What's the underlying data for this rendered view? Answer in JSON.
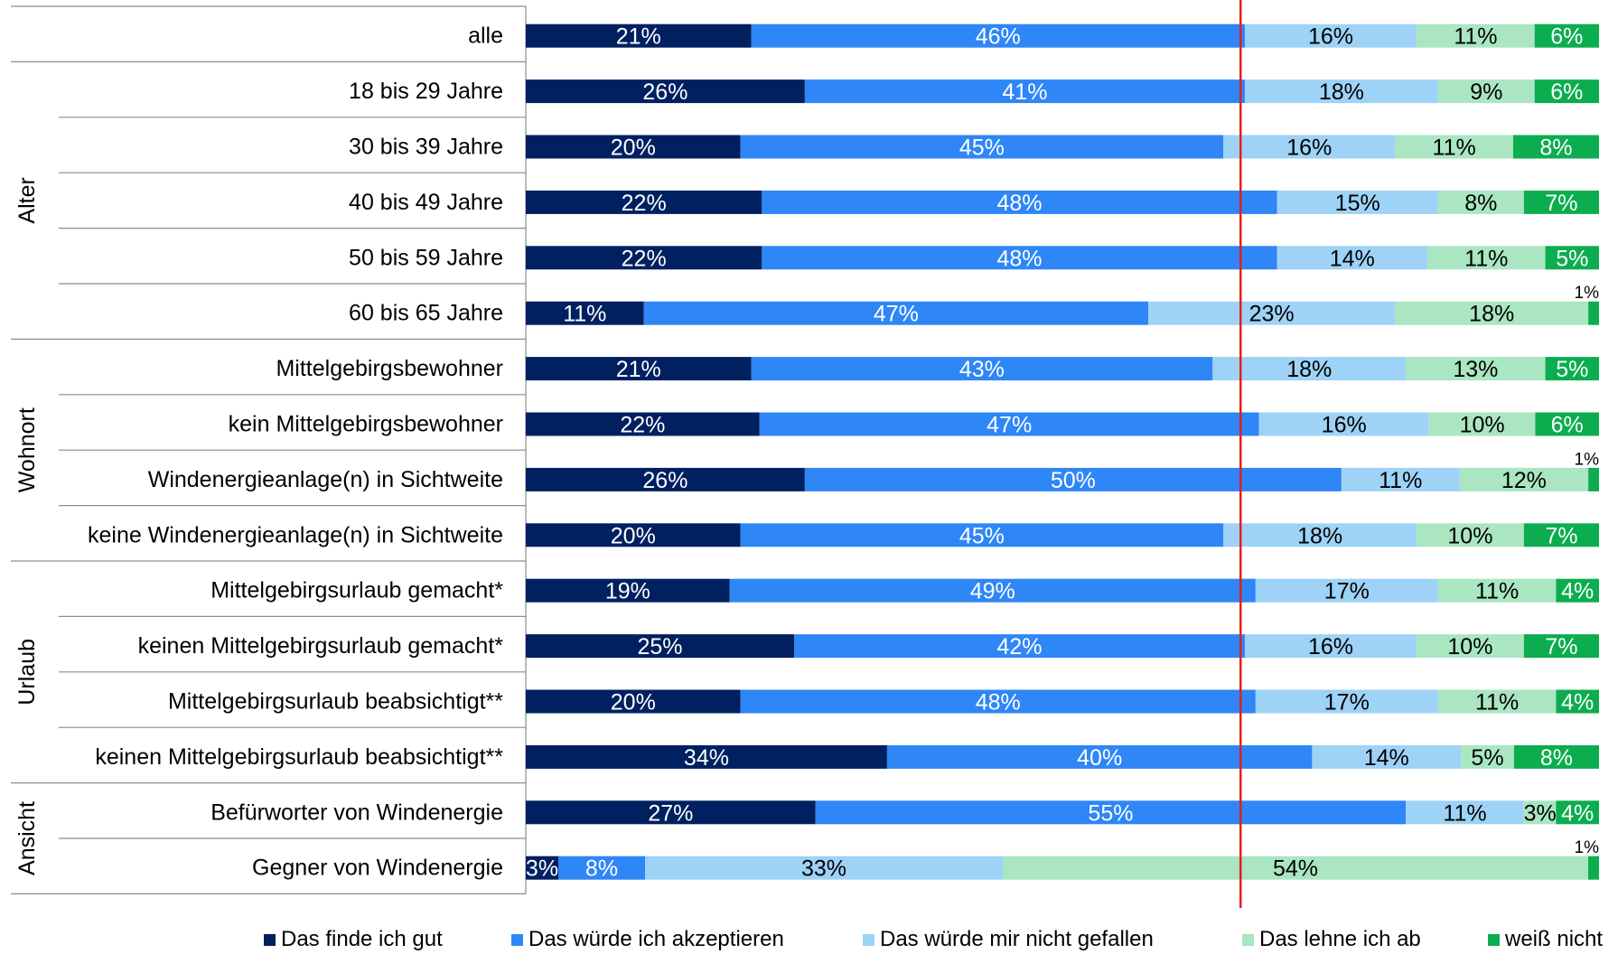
{
  "chart_data": {
    "type": "bar",
    "orientation": "horizontal",
    "stacked": true,
    "xlim": [
      0,
      100
    ],
    "grid": false,
    "legend_position": "bottom",
    "reference_line_color": "#e0201b",
    "group_labels": [
      {
        "label": "",
        "rows": [
          0,
          0
        ]
      },
      {
        "label": "Alter",
        "rows": [
          1,
          5
        ]
      },
      {
        "label": "Wohnort",
        "rows": [
          6,
          9
        ]
      },
      {
        "label": "Urlaub",
        "rows": [
          10,
          13
        ]
      },
      {
        "label": "Ansicht",
        "rows": [
          14,
          15
        ]
      }
    ],
    "categories": [
      "alle",
      "18 bis 29 Jahre",
      "30 bis 39 Jahre",
      "40 bis 49 Jahre",
      "50 bis 59 Jahre",
      "60 bis 65 Jahre",
      "Mittelgebirgsbewohner",
      "kein Mittelgebirgsbewohner",
      "Windenergieanlage(n) in Sichtweite",
      "keine Windenergieanlage(n) in Sichtweite",
      "Mittelgebirgsurlaub gemacht*",
      "keinen Mittelgebirgsurlaub gemacht*",
      "Mittelgebirgsurlaub beabsichtigt**",
      "keinen Mittelgebirgsurlaub beabsichtigt**",
      "Befürworter von Windenergie",
      "Gegner von Windenergie"
    ],
    "series": [
      {
        "name": "Das finde ich gut",
        "color": "#002060",
        "label_color": "#ffffff",
        "values": [
          21,
          26,
          20,
          22,
          22,
          11,
          21,
          22,
          26,
          20,
          19,
          25,
          20,
          34,
          27,
          3
        ]
      },
      {
        "name": "Das würde ich akzeptieren",
        "color": "#2f86f6",
        "label_color": "#ffffff",
        "values": [
          46,
          41,
          45,
          48,
          48,
          47,
          43,
          47,
          50,
          45,
          49,
          42,
          48,
          40,
          55,
          8
        ]
      },
      {
        "name": "Das würde mir nicht gefallen",
        "color": "#9ed2f7",
        "label_color": "#000000",
        "values": [
          16,
          18,
          16,
          15,
          14,
          23,
          18,
          16,
          11,
          18,
          17,
          16,
          17,
          14,
          11,
          33
        ]
      },
      {
        "name": "Das lehne ich ab",
        "color": "#a9e6c1",
        "label_color": "#000000",
        "values": [
          11,
          9,
          11,
          8,
          11,
          18,
          13,
          10,
          12,
          10,
          11,
          10,
          11,
          5,
          3,
          54
        ]
      },
      {
        "name": "weiß nicht",
        "color": "#0cad4f",
        "label_color": "#ffffff",
        "values": [
          6,
          6,
          8,
          7,
          5,
          1,
          5,
          6,
          1,
          7,
          4,
          7,
          4,
          8,
          4,
          1
        ]
      }
    ],
    "value_labels": [
      [
        "21%",
        "46%",
        "16%",
        "11%",
        "6%"
      ],
      [
        "26%",
        "41%",
        "18%",
        "9%",
        "6%"
      ],
      [
        "20%",
        "45%",
        "16%",
        "11%",
        "8%"
      ],
      [
        "22%",
        "48%",
        "15%",
        "8%",
        "7%"
      ],
      [
        "22%",
        "48%",
        "14%",
        "11%",
        "5%"
      ],
      [
        "11%",
        "47%",
        "23%",
        "18%",
        "1%"
      ],
      [
        "21%",
        "43%",
        "18%",
        "13%",
        "5%"
      ],
      [
        "22%",
        "47%",
        "16%",
        "10%",
        "6%"
      ],
      [
        "26%",
        "50%",
        "11%",
        "12%",
        "1%"
      ],
      [
        "20%",
        "45%",
        "18%",
        "10%",
        "7%"
      ],
      [
        "19%",
        "49%",
        "17%",
        "11%",
        "4%"
      ],
      [
        "25%",
        "42%",
        "16%",
        "10%",
        "7%"
      ],
      [
        "20%",
        "48%",
        "17%",
        "11%",
        "4%"
      ],
      [
        "34%",
        "40%",
        "14%",
        "5%",
        "8%"
      ],
      [
        "27%",
        "55%",
        "11%",
        "3%",
        "4%"
      ],
      [
        "3%",
        "8%",
        "33%",
        "54%",
        "1%"
      ]
    ]
  }
}
